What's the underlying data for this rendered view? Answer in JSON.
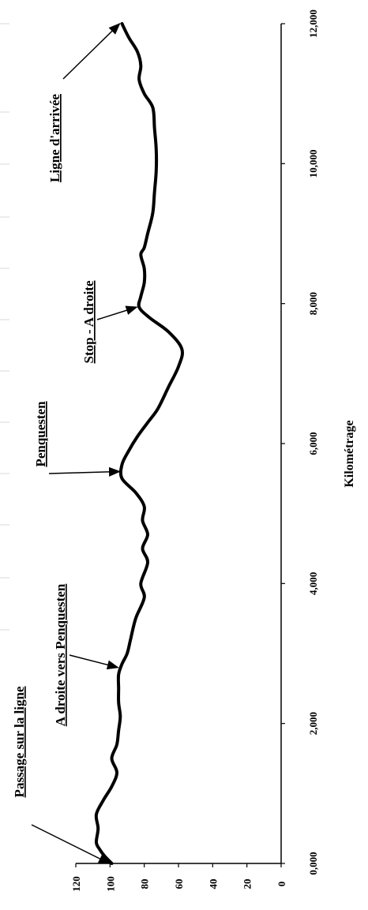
{
  "chart_data": {
    "type": "line",
    "orientation": "rotated-90",
    "xlabel": "Kilométrage",
    "ylabel": "",
    "xlim": [
      0,
      12000
    ],
    "ylim": [
      0,
      120
    ],
    "x_ticks": [
      "0,000",
      "2,000",
      "4,000",
      "6,000",
      "8,000",
      "10,000",
      "12,000"
    ],
    "y_ticks": [
      "0",
      "20",
      "40",
      "60",
      "80",
      "100",
      "120"
    ],
    "grid": false,
    "series": [
      {
        "x": [
          0,
          100,
          200,
          300,
          500,
          700,
          900,
          1100,
          1300,
          1500,
          1700,
          1900,
          2100,
          2300,
          2500,
          2700,
          2850,
          3000,
          3200,
          3500,
          3800,
          4000,
          4300,
          4500,
          4700,
          4900,
          5100,
          5300,
          5500,
          5700,
          5900,
          6100,
          6300,
          6500,
          6800,
          7100,
          7350,
          7600,
          7800,
          7950,
          8100,
          8300,
          8500,
          8700,
          8800,
          9000,
          9300,
          9600,
          9900,
          10200,
          10500,
          10800,
          11000,
          11200,
          11400,
          11600,
          11800,
          12000
        ],
        "y": [
          99,
          103,
          106,
          108,
          107,
          108,
          104,
          99,
          96,
          99,
          96,
          95,
          94,
          95,
          95,
          95,
          93,
          90,
          88,
          85,
          80,
          82,
          78,
          81,
          78,
          81,
          80,
          85,
          93,
          93,
          89,
          84,
          78,
          72,
          66,
          60,
          58,
          66,
          77,
          83,
          82,
          80,
          80,
          82,
          80,
          78,
          75,
          74,
          73,
          73,
          74,
          75,
          80,
          83,
          82,
          84,
          89,
          93
        ]
      }
    ],
    "annotations": [
      {
        "text": "Passage sur la ligne",
        "x": 0,
        "y": 99
      },
      {
        "text": "A droite vers Penquesten",
        "x": 2800,
        "y": 94
      },
      {
        "text": "Penquesten",
        "x": 5600,
        "y": 93
      },
      {
        "text": "Stop - A droite",
        "x": 7950,
        "y": 83
      },
      {
        "text": "Ligne d'arrivée",
        "x": 12000,
        "y": 93
      }
    ]
  }
}
